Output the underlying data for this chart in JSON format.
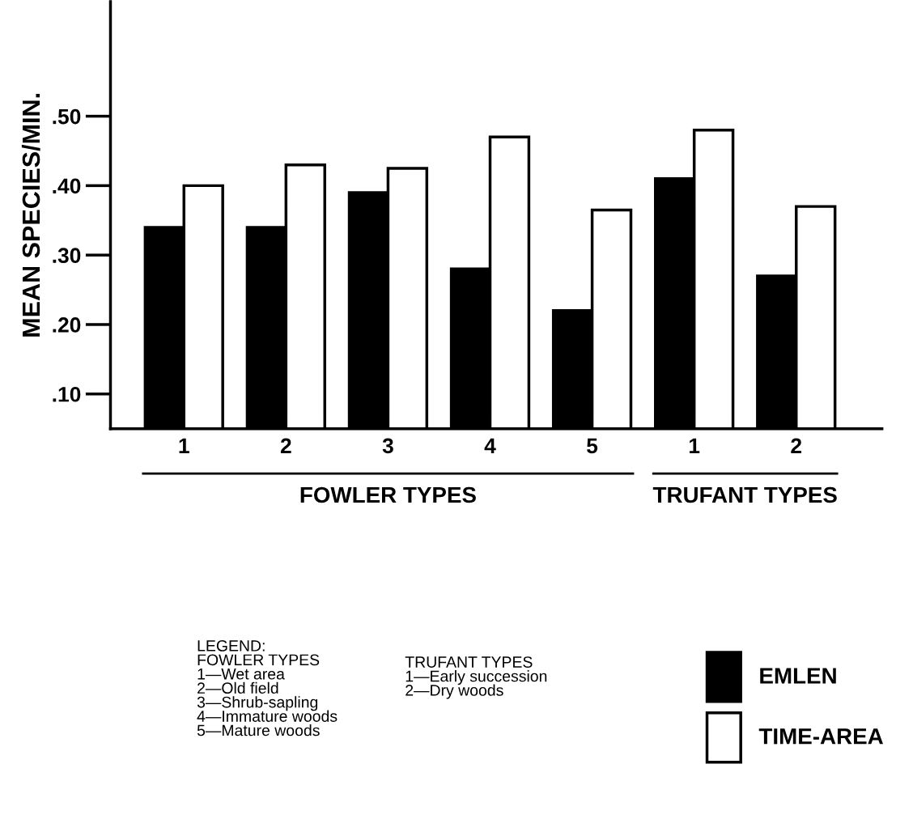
{
  "chart_data": {
    "type": "bar",
    "ylabel": "MEAN SPECIES/MIN.",
    "categories": [
      "1",
      "2",
      "3",
      "4",
      "5",
      "1",
      "2"
    ],
    "series": [
      {
        "name": "EMLEN",
        "color": "#000000",
        "values": [
          0.34,
          0.34,
          0.39,
          0.28,
          0.22,
          0.41,
          0.27
        ]
      },
      {
        "name": "TIME-AREA",
        "color": "#ffffff",
        "values": [
          0.4,
          0.43,
          0.425,
          0.47,
          0.365,
          0.48,
          0.37
        ]
      }
    ],
    "ylim": [
      0.05,
      0.665
    ],
    "yticks": [
      {
        "value": 0.1,
        "label": ".10"
      },
      {
        "value": 0.2,
        "label": ".20"
      },
      {
        "value": 0.3,
        "label": ".30"
      },
      {
        "value": 0.4,
        "label": ".40"
      },
      {
        "value": 0.5,
        "label": ".50"
      }
    ],
    "annotations": [
      "FOWLER TYPES",
      "TRUFANT TYPES",
      "LEGEND:\nFOWLER TYPES\n1—Wet area\n2—Old field\n3—Shrub-sapling\n4—Immature woods\n5—Mature woods",
      "TRUFANT TYPES\n1—Early succession\n2—Dry woods"
    ],
    "grid": false,
    "legend": "bottom right"
  }
}
